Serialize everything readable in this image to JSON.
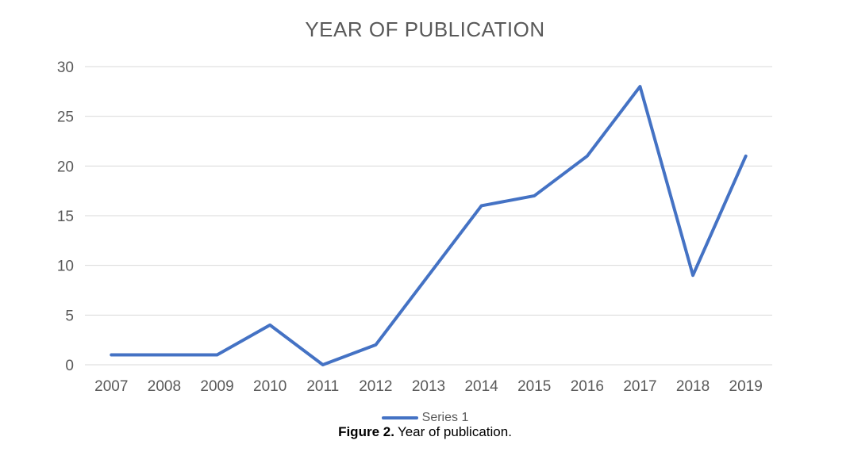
{
  "chart_data": {
    "type": "line",
    "title": "YEAR OF PUBLICATION",
    "categories": [
      "2007",
      "2008",
      "2009",
      "2010",
      "2011",
      "2012",
      "2013",
      "2014",
      "2015",
      "2016",
      "2017",
      "2018",
      "2019"
    ],
    "series": [
      {
        "name": "Series 1",
        "values": [
          1,
          1,
          1,
          4,
          0,
          2,
          9,
          16,
          17,
          21,
          28,
          9,
          21
        ]
      }
    ],
    "xlabel": "",
    "ylabel": "",
    "ylim": [
      0,
      30
    ],
    "y_ticks": [
      0,
      5,
      10,
      15,
      20,
      25,
      30
    ],
    "grid": "horizontal",
    "legend_position": "bottom",
    "colors": {
      "line": "#4472C4",
      "gridline": "#D9D9D9",
      "axis_text": "#595959",
      "title_text": "#595959",
      "caption_text": "#000000"
    }
  },
  "figure": {
    "caption_label": "Figure 2.",
    "caption_text": "Year of publication."
  }
}
